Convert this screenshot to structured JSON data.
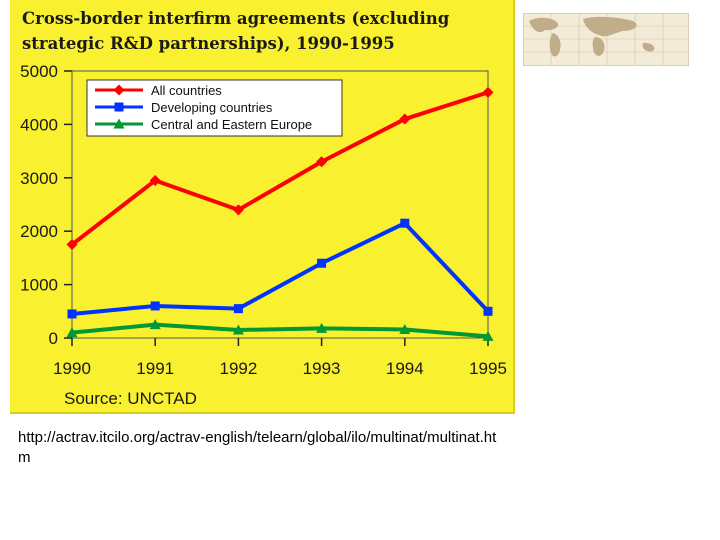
{
  "chart_data": {
    "type": "line",
    "title_lines": [
      "Cross-border interfirm agreements (excluding",
      "strategic R&D partnerships), 1990-1995"
    ],
    "categories": [
      "1990",
      "1991",
      "1992",
      "1993",
      "1994",
      "1995"
    ],
    "y_ticks": [
      "5000",
      "4000",
      "3000",
      "2000",
      "1000",
      "0"
    ],
    "ylim": [
      0,
      5000
    ],
    "grid": false,
    "legend_position": "top-left",
    "series": [
      {
        "name": "All countries",
        "color": "#ff0000",
        "marker": "diamond",
        "values": [
          1750,
          2950,
          2400,
          3300,
          4100,
          4600
        ]
      },
      {
        "name": "Developing countries",
        "color": "#0033ff",
        "marker": "square",
        "values": [
          450,
          600,
          550,
          1400,
          2150,
          500
        ]
      },
      {
        "name": "Central and Eastern Europe",
        "color": "#009933",
        "marker": "triangle",
        "values": [
          100,
          250,
          150,
          180,
          160,
          30
        ]
      }
    ],
    "source": "Source: UNCTAD"
  },
  "page": {
    "url_text": "http://actrav.itcilo.org/actrav-english/telearn/global/ilo/multinat/multinat.htm"
  },
  "icons": {
    "thumbnail": "world-map-icon"
  }
}
